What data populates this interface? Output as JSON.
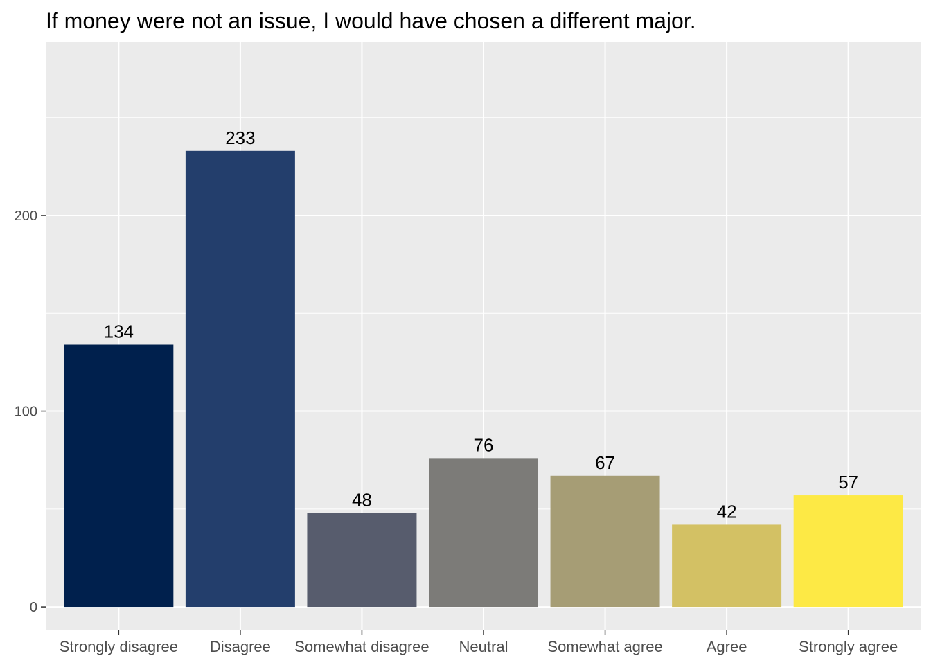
{
  "chart_data": {
    "type": "bar",
    "title": "If money were not an issue, I would have chosen a different major.",
    "xlabel": "",
    "ylabel": "",
    "categories": [
      "Strongly disagree",
      "Disagree",
      "Somewhat disagree",
      "Neutral",
      "Somewhat agree",
      "Agree",
      "Strongly agree"
    ],
    "values": [
      134,
      233,
      48,
      76,
      67,
      42,
      57
    ],
    "data_labels": [
      "134",
      "233",
      "48",
      "76",
      "67",
      "42",
      "57"
    ],
    "colors": [
      "#00204d",
      "#233e6c",
      "#575c6d",
      "#7c7b78",
      "#a69d75",
      "#d3c164",
      "#fde945"
    ],
    "yticks": [
      0,
      100,
      200
    ],
    "ytick_labels": [
      "0",
      "100",
      "200"
    ],
    "ylim": [
      -11.65,
      288.5
    ],
    "grid": true,
    "legend": "none",
    "style": {
      "panel_bg": "#ebebeb",
      "grid_color": "#ffffff",
      "tick_color": "#4d4d4d"
    }
  }
}
